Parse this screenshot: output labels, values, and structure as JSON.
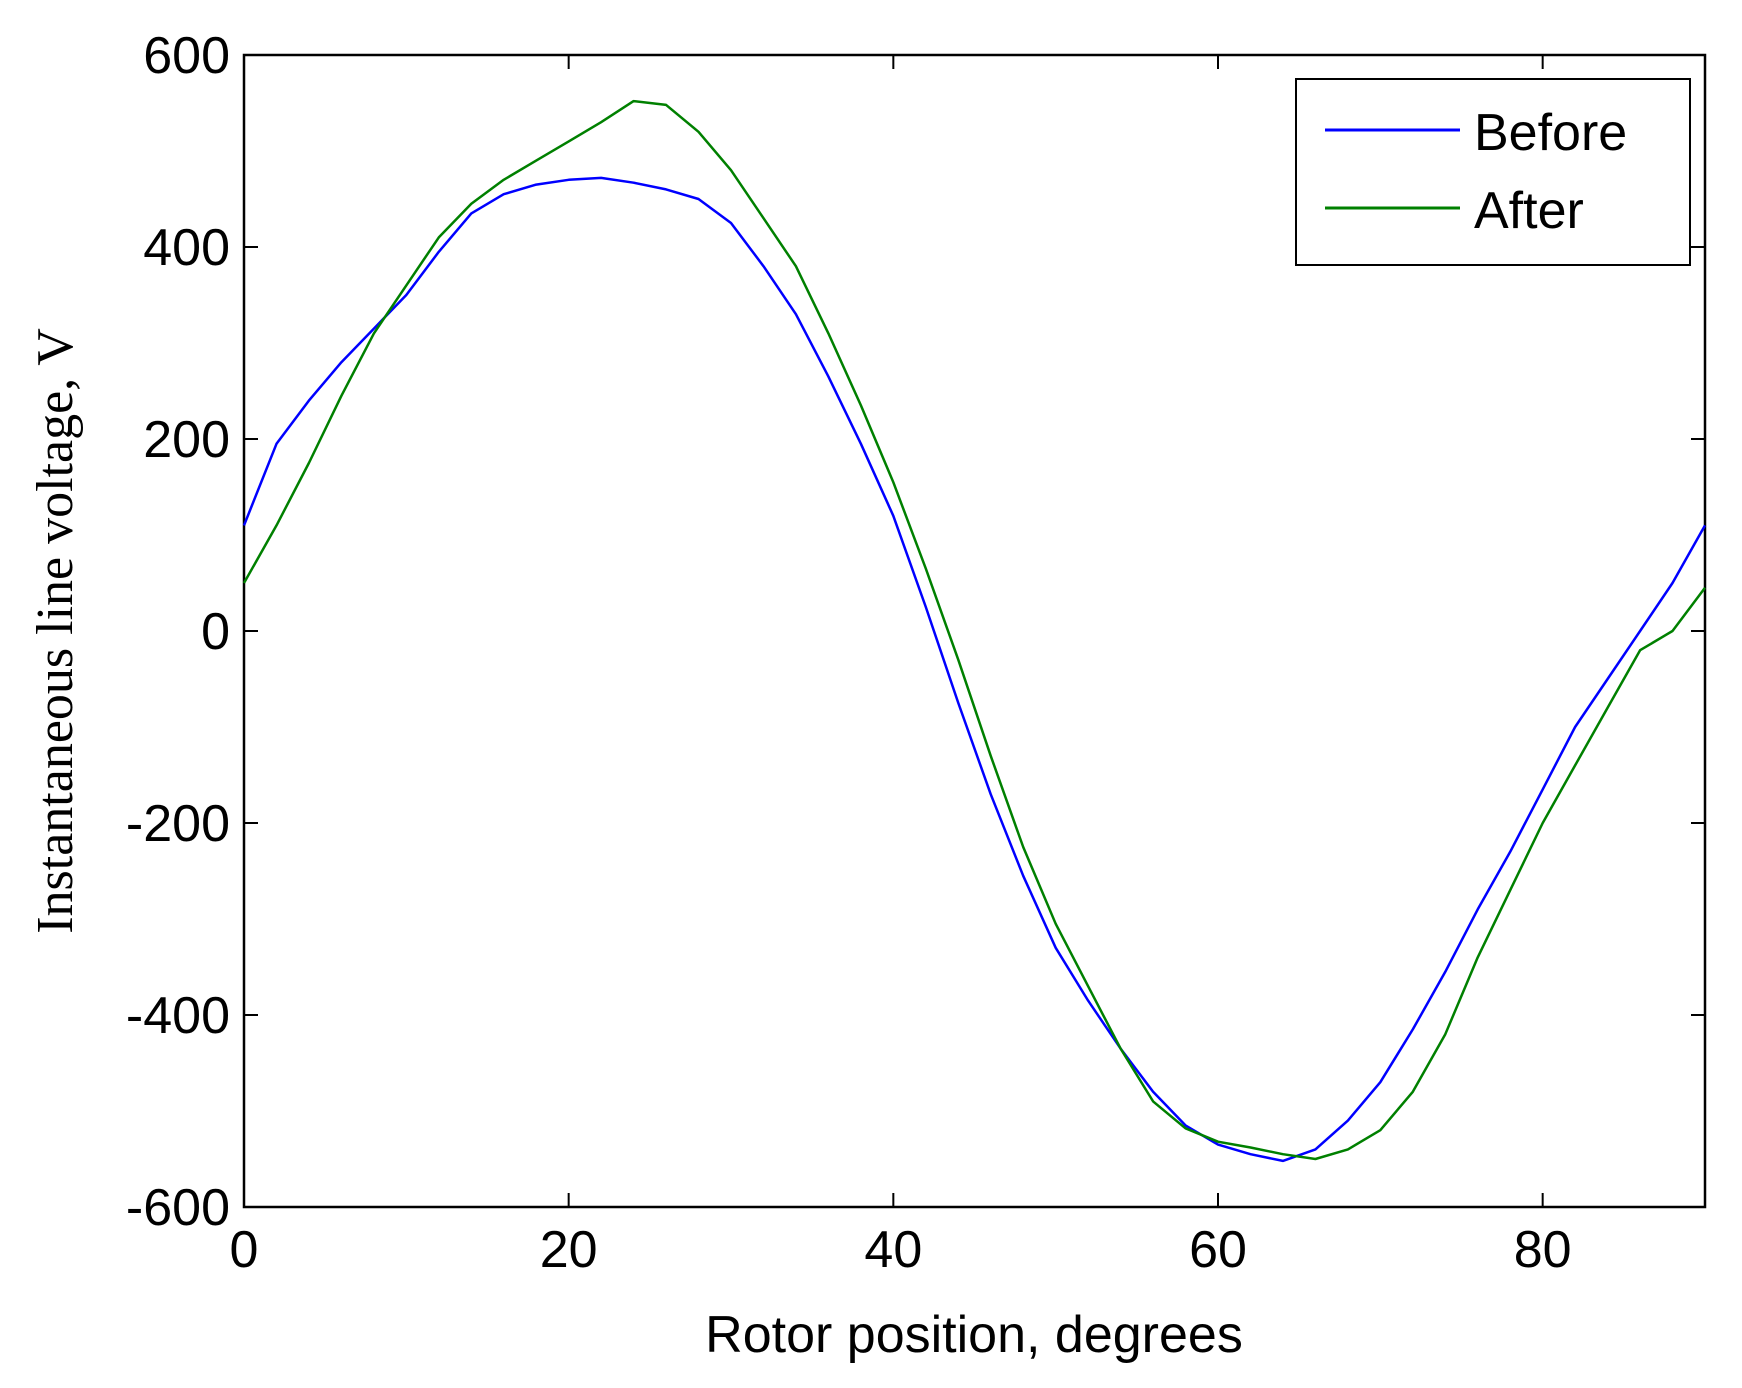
{
  "chart_data": {
    "type": "line",
    "title": "",
    "xlabel": "Rotor position, degrees",
    "ylabel": "Instantaneous line voltage, V",
    "xlim": [
      0,
      90
    ],
    "ylim": [
      -600,
      600
    ],
    "xticks": [
      0,
      20,
      40,
      60,
      80
    ],
    "yticks": [
      600,
      400,
      200,
      0,
      -200,
      -400,
      -600
    ],
    "xtick_labels": [
      "0",
      "20",
      "40",
      "60",
      "80"
    ],
    "ytick_labels": [
      "600",
      "400",
      "200",
      "0",
      "-200",
      "-400",
      "-600"
    ],
    "grid": false,
    "legend_position": "top-right",
    "series": [
      {
        "name": "Before",
        "color": "#0000ff",
        "x": [
          0,
          2,
          4,
          6,
          8,
          10,
          12,
          14,
          16,
          18,
          20,
          22,
          24,
          26,
          28,
          30,
          32,
          34,
          36,
          38,
          40,
          42,
          44,
          46,
          48,
          50,
          52,
          54,
          56,
          58,
          60,
          62,
          64,
          66,
          68,
          70,
          72,
          74,
          76,
          78,
          80,
          82,
          84,
          86,
          88,
          90
        ],
        "y": [
          110,
          195,
          240,
          280,
          315,
          350,
          395,
          435,
          455,
          465,
          470,
          472,
          467,
          460,
          450,
          425,
          380,
          330,
          265,
          195,
          120,
          25,
          -75,
          -170,
          -255,
          -330,
          -385,
          -435,
          -480,
          -515,
          -535,
          -545,
          -552,
          -540,
          -510,
          -470,
          -415,
          -355,
          -290,
          -230,
          -165,
          -100,
          -50,
          0,
          50,
          110
        ]
      },
      {
        "name": "After",
        "color": "#008000",
        "x": [
          0,
          2,
          4,
          6,
          8,
          10,
          12,
          14,
          16,
          18,
          20,
          22,
          24,
          26,
          28,
          30,
          32,
          34,
          36,
          38,
          40,
          42,
          44,
          46,
          48,
          50,
          52,
          54,
          56,
          58,
          60,
          62,
          64,
          66,
          68,
          70,
          72,
          74,
          76,
          78,
          80,
          82,
          84,
          86,
          88,
          90
        ],
        "y": [
          50,
          110,
          175,
          245,
          310,
          360,
          410,
          445,
          470,
          490,
          510,
          530,
          552,
          548,
          520,
          480,
          430,
          380,
          310,
          235,
          155,
          65,
          -30,
          -130,
          -225,
          -305,
          -370,
          -435,
          -490,
          -518,
          -532,
          -538,
          -545,
          -550,
          -540,
          -520,
          -480,
          -420,
          -340,
          -270,
          -200,
          -140,
          -80,
          -20,
          0,
          45
        ]
      }
    ]
  }
}
